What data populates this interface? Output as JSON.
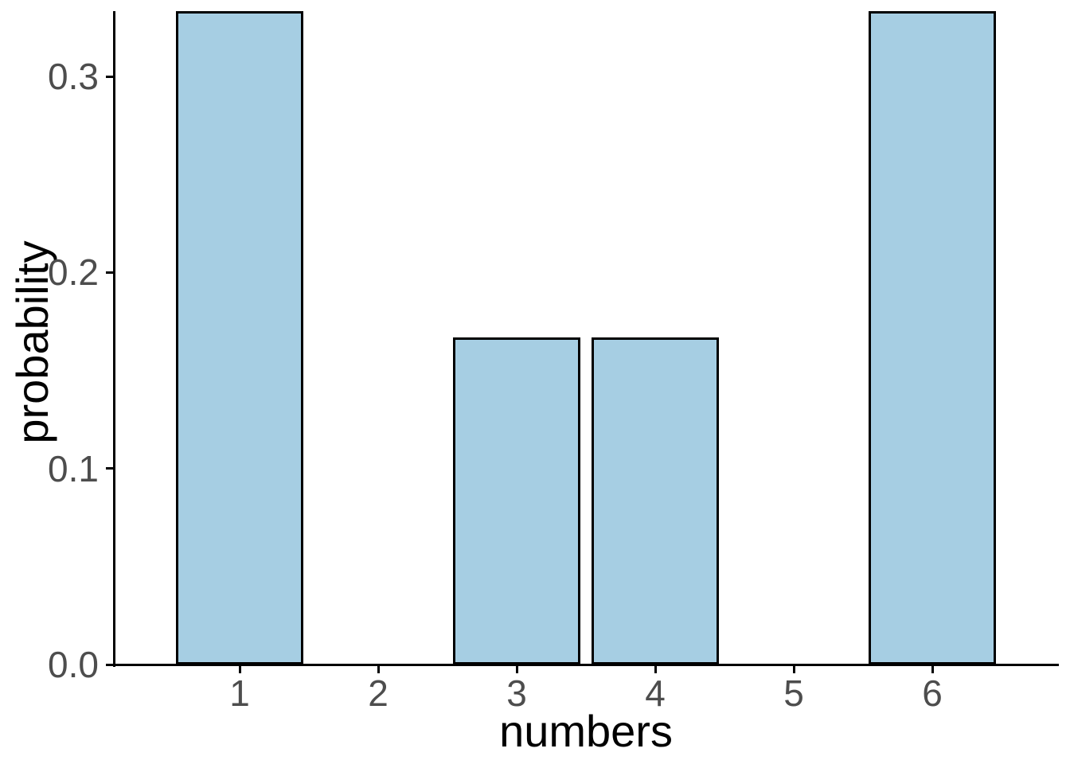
{
  "chart_data": {
    "type": "bar",
    "xlabel": "numbers",
    "ylabel": "probability",
    "categories": [
      "1",
      "2",
      "3",
      "4",
      "5",
      "6"
    ],
    "values": [
      0.3333,
      0,
      0.1667,
      0.1667,
      0,
      0.3333
    ],
    "ylim": [
      0,
      0.3333
    ],
    "ytick_values": [
      0,
      0.1,
      0.2,
      0.3
    ],
    "ytick_labels": [
      "0.0",
      "0.1",
      "0.2",
      "0.3"
    ],
    "grid": false,
    "legend_position": "none",
    "colors": {
      "bar_fill": "#A6CEE3",
      "bar_border": "#000000",
      "axis_line": "#000000",
      "tick_mark": "#000000",
      "axis_text": "#4D4D4D",
      "axis_title": "#000000",
      "background": "#FFFFFF"
    }
  }
}
